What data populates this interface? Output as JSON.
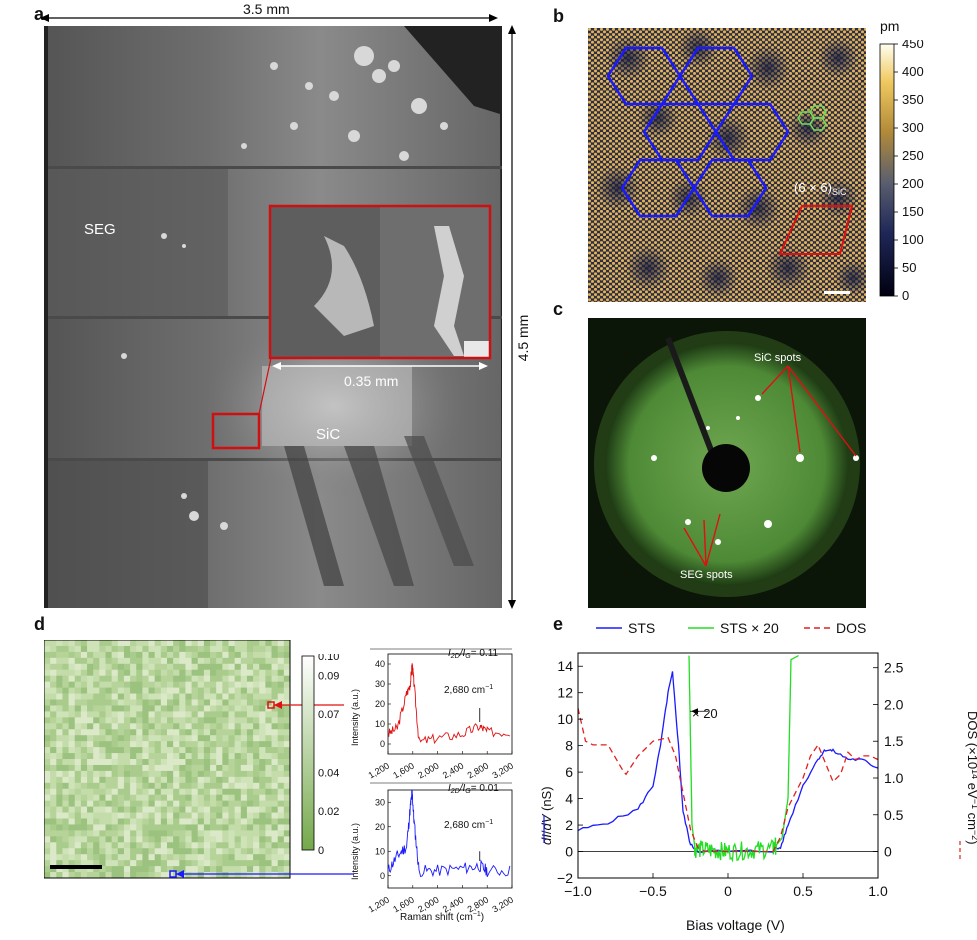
{
  "panels": {
    "a": {
      "label": "a",
      "width_text": "3.5 mm",
      "height_text": "4.5 mm",
      "inset_scale_text": "0.35 mm",
      "region_seg": "SEG",
      "region_sic": "SiC"
    },
    "b": {
      "label": "b",
      "unit": "pm",
      "colorbar_ticks": [
        "450",
        "400",
        "350",
        "300",
        "250",
        "200",
        "150",
        "100",
        "50",
        "0"
      ],
      "cell_label_main": "(6 × 6)",
      "cell_label_sub": "SiC"
    },
    "c": {
      "label": "c",
      "sic_spots": "SiC spots",
      "seg_spots": "SEG spots"
    },
    "d": {
      "label": "d",
      "colorbar_ticks": [
        "0.10",
        "0.09",
        "0.07",
        "0.04",
        "0.02",
        "0"
      ],
      "top_spectrum": {
        "ratio_main": "I",
        "ratio_text": "= 0.11",
        "peak_label": "2,680 cm",
        "ylabel": "Intensity (a.u.)",
        "yticks": [
          "40",
          "30",
          "20",
          "10",
          "0"
        ],
        "xticks": [
          "1,200",
          "1,600",
          "2,000",
          "2,400",
          "2,800",
          "3,200"
        ]
      },
      "bottom_spectrum": {
        "ratio_text": "= 0.01",
        "peak_label": "2,680 cm",
        "ylabel": "Intensity (a.u.)",
        "yticks": [
          "30",
          "20",
          "10",
          "0"
        ],
        "xticks": [
          "1,200",
          "1,600",
          "2,000",
          "2,400",
          "2,800",
          "3,200"
        ]
      },
      "xlabel": "Raman shift (cm"
    },
    "e": {
      "label": "e",
      "legend": [
        "STS",
        "STS × 20",
        "DOS"
      ],
      "x20_label": "× 20",
      "xlabel": "Bias voltage (V)",
      "ylabel_left": "dI/dV (nS)",
      "ylabel_right": "DOS (×10",
      "xticks": [
        "−1.0",
        "−0.5",
        "0",
        "0.5",
        "1.0"
      ],
      "yticks_left": [
        "14",
        "12",
        "10",
        "8",
        "6",
        "4",
        "2",
        "0",
        "−2"
      ],
      "yticks_right": [
        "2.5",
        "2.0",
        "1.5",
        "1.0",
        "0.5",
        "0"
      ]
    }
  },
  "chart_data": [
    {
      "type": "line",
      "panel": "d-top",
      "x": [
        1200,
        1350,
        1500,
        1560,
        1590,
        1620,
        1700,
        2000,
        2400,
        2680,
        2800,
        3200
      ],
      "y": [
        5,
        8,
        25,
        30,
        40,
        30,
        1,
        3,
        5,
        9,
        6,
        6
      ],
      "xlim": [
        1200,
        3200
      ],
      "ylim": [
        -5,
        45
      ],
      "annotation": "I2D/IG = 0.11"
    },
    {
      "type": "line",
      "panel": "d-bottom",
      "x": [
        1200,
        1350,
        1500,
        1560,
        1590,
        1620,
        1700,
        2000,
        2400,
        2680,
        2800,
        3200
      ],
      "y": [
        2,
        8,
        12,
        28,
        34,
        22,
        2,
        2,
        3,
        4,
        2,
        2
      ],
      "xlim": [
        1200,
        3200
      ],
      "ylim": [
        -5,
        35
      ],
      "annotation": "I2D/IG = 0.01"
    },
    {
      "type": "line",
      "panel": "e",
      "xlim": [
        -1.0,
        1.0
      ],
      "ylim_left": [
        -2,
        15
      ],
      "ylim_right": [
        -0.36,
        2.7
      ],
      "series": [
        {
          "name": "STS",
          "color": "#1a1aff",
          "x": [
            -1.0,
            -0.8,
            -0.6,
            -0.5,
            -0.45,
            -0.4,
            -0.37,
            -0.33,
            -0.3,
            -0.25,
            -0.2,
            0,
            0.3,
            0.35,
            0.4,
            0.5,
            0.6,
            0.65,
            0.7,
            0.8,
            0.9,
            1.0
          ],
          "y": [
            1.6,
            2.2,
            3.2,
            5.0,
            8.0,
            12.0,
            13.5,
            8.0,
            3.0,
            0.5,
            0.05,
            0.0,
            0.05,
            0.3,
            2.0,
            5.0,
            7.0,
            7.7,
            7.6,
            7.0,
            6.9,
            6.3
          ]
        },
        {
          "name": "STS × 20",
          "color": "#22dd22",
          "x": [
            -0.26,
            -0.24,
            -0.22,
            0.0,
            0.3,
            0.36,
            0.4,
            0.42,
            0.47
          ],
          "y": [
            14.8,
            2.0,
            0.2,
            0.0,
            0.2,
            1.0,
            4.0,
            14.5,
            14.8
          ]
        },
        {
          "name": "DOS",
          "color": "#e02020",
          "x": [
            -1.0,
            -0.95,
            -0.9,
            -0.8,
            -0.7,
            -0.68,
            -0.6,
            -0.5,
            -0.4,
            -0.35,
            -0.3,
            -0.25,
            -0.2,
            -0.15,
            0,
            0.3,
            0.35,
            0.4,
            0.5,
            0.55,
            0.6,
            0.65,
            0.7,
            0.75,
            0.8,
            0.85,
            0.9,
            0.95,
            1.0
          ],
          "y": [
            1.95,
            1.5,
            1.45,
            1.45,
            1.1,
            1.05,
            1.3,
            1.5,
            1.55,
            1.3,
            0.8,
            0.3,
            0.05,
            0.0,
            0.0,
            0.0,
            0.2,
            0.6,
            1.0,
            1.3,
            1.45,
            1.2,
            0.95,
            1.05,
            1.35,
            1.25,
            1.3,
            1.3,
            1.25
          ]
        }
      ]
    }
  ]
}
